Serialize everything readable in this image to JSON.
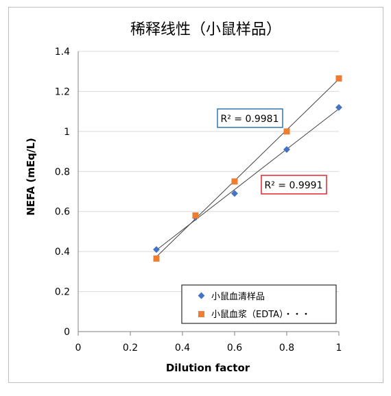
{
  "chart_data": {
    "type": "scatter",
    "title": "稀释线性（小鼠样品）",
    "xlabel": "Dilution factor",
    "ylabel": "NEFA (mEq/L)",
    "xlim": [
      0,
      1
    ],
    "ylim": [
      0,
      1.4
    ],
    "x_ticks": [
      "0",
      "0.2",
      "0.4",
      "0.6",
      "0.8",
      "1"
    ],
    "y_ticks": [
      "0",
      "0.2",
      "0.4",
      "0.6",
      "0.8",
      "1",
      "1.2",
      "1.4"
    ],
    "x_tick_values": [
      0,
      0.2,
      0.4,
      0.6,
      0.8,
      1
    ],
    "y_tick_values": [
      0,
      0.2,
      0.4,
      0.6,
      0.8,
      1,
      1.2,
      1.4
    ],
    "grid": "horizontal",
    "legend_position": "bottom-right",
    "series": [
      {
        "name": "小鼠血清样品",
        "marker": "diamond",
        "color": "#4472c4",
        "x": [
          0.3,
          0.45,
          0.6,
          0.8,
          1.0
        ],
        "y": [
          0.41,
          0.57,
          0.69,
          0.91,
          1.12
        ],
        "trendline": true,
        "r2_label": "R² = 0.9991",
        "r2_box_color": "#e8202a"
      },
      {
        "name": "小鼠血浆（EDTA）・・・",
        "marker": "square",
        "color": "#ed7d31",
        "x": [
          0.3,
          0.45,
          0.6,
          0.8,
          1.0
        ],
        "y": [
          0.365,
          0.58,
          0.75,
          1.0,
          1.265
        ],
        "trendline": true,
        "r2_label": "R² = 0.9981",
        "r2_box_color": "#2e75b6"
      }
    ]
  }
}
